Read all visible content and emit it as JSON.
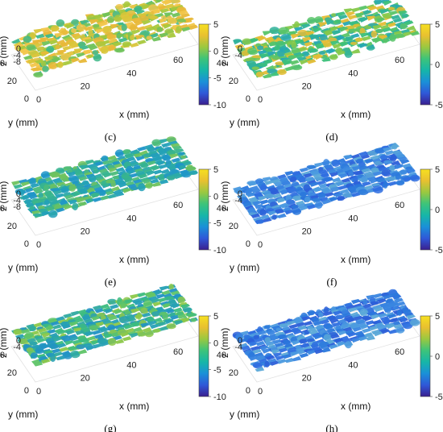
{
  "figure": {
    "panels": [
      {
        "label": "(c)",
        "clim": [
          -10,
          5
        ],
        "cbar_ticks": [
          "5",
          "0",
          "-5",
          "-10"
        ],
        "z_ticks": [
          "0",
          "-4",
          "-8"
        ],
        "tint": "yellow-green"
      },
      {
        "label": "(d)",
        "clim": [
          -5,
          5
        ],
        "cbar_ticks": [
          "5",
          "0",
          "-5"
        ],
        "z_ticks": [
          "0",
          "-4"
        ],
        "tint": "green"
      },
      {
        "label": "(e)",
        "clim": [
          -10,
          5
        ],
        "cbar_ticks": [
          "5",
          "0",
          "-5",
          "-10"
        ],
        "z_ticks": [
          "0",
          "-4",
          "-8"
        ],
        "tint": "teal"
      },
      {
        "label": "(f)",
        "clim": [
          -5,
          5
        ],
        "cbar_ticks": [
          "5",
          "0",
          "-5"
        ],
        "z_ticks": [
          "0",
          "-4"
        ],
        "tint": "blue"
      },
      {
        "label": "(g)",
        "clim": [
          -10,
          5
        ],
        "cbar_ticks": [
          "5",
          "0",
          "-5",
          "-10"
        ],
        "z_ticks": [
          "0",
          "-4"
        ],
        "tint": "teal-green"
      },
      {
        "label": "(h)",
        "clim": [
          -5,
          5
        ],
        "cbar_ticks": [
          "5",
          "0",
          "-5"
        ],
        "z_ticks": [
          "0",
          "-4"
        ],
        "tint": "blue"
      }
    ],
    "x_ticks": [
      "0",
      "20",
      "40",
      "60"
    ],
    "y_ticks": [
      "0",
      "20",
      "40"
    ],
    "xlabel": "x (mm)",
    "ylabel": "y (mm)",
    "zlabel": "z (mm)",
    "colormap": [
      "#3a1f8f",
      "#2f58d8",
      "#1a90d8",
      "#16b6a8",
      "#3dc47a",
      "#9ac840",
      "#e8c030",
      "#f7e020"
    ]
  },
  "chart_data": [
    {
      "type": "heatmap",
      "title": "(c)",
      "xlabel": "x (mm)",
      "ylabel": "y (mm)",
      "zlabel": "z (mm)",
      "x_range": [
        0,
        70
      ],
      "y_range": [
        0,
        40
      ],
      "z_ticks": [
        0,
        -4,
        -8
      ],
      "clim": [
        -10,
        5
      ],
      "surface_mean_z": 1.5
    },
    {
      "type": "heatmap",
      "title": "(d)",
      "xlabel": "x (mm)",
      "ylabel": "y (mm)",
      "zlabel": "z (mm)",
      "x_range": [
        0,
        70
      ],
      "y_range": [
        0,
        40
      ],
      "z_ticks": [
        0,
        -4
      ],
      "clim": [
        -5,
        5
      ],
      "surface_mean_z": 0.5
    },
    {
      "type": "heatmap",
      "title": "(e)",
      "xlabel": "x (mm)",
      "ylabel": "y (mm)",
      "zlabel": "z (mm)",
      "x_range": [
        0,
        70
      ],
      "y_range": [
        0,
        40
      ],
      "z_ticks": [
        0,
        -4,
        -8
      ],
      "clim": [
        -10,
        5
      ],
      "surface_mean_z": -1
    },
    {
      "type": "heatmap",
      "title": "(f)",
      "xlabel": "x (mm)",
      "ylabel": "y (mm)",
      "zlabel": "z (mm)",
      "x_range": [
        0,
        70
      ],
      "y_range": [
        0,
        40
      ],
      "z_ticks": [
        0,
        -4
      ],
      "clim": [
        -5,
        5
      ],
      "surface_mean_z": -2.5
    },
    {
      "type": "heatmap",
      "title": "(g)",
      "xlabel": "x (mm)",
      "ylabel": "y (mm)",
      "zlabel": "z (mm)",
      "x_range": [
        0,
        70
      ],
      "y_range": [
        0,
        40
      ],
      "z_ticks": [
        0,
        -4
      ],
      "clim": [
        -10,
        5
      ],
      "surface_mean_z": -0.5
    },
    {
      "type": "heatmap",
      "title": "(h)",
      "xlabel": "x (mm)",
      "ylabel": "y (mm)",
      "zlabel": "z (mm)",
      "x_range": [
        0,
        70
      ],
      "y_range": [
        0,
        40
      ],
      "z_ticks": [
        0,
        -4
      ],
      "clim": [
        -5,
        5
      ],
      "surface_mean_z": -2
    }
  ]
}
